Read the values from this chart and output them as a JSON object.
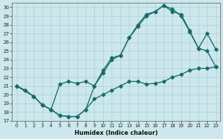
{
  "xlabel": "Humidex (Indice chaleur)",
  "xlim": [
    -0.5,
    23.5
  ],
  "ylim": [
    17,
    30.5
  ],
  "xticks": [
    0,
    1,
    2,
    3,
    4,
    5,
    6,
    7,
    8,
    9,
    10,
    11,
    12,
    13,
    14,
    15,
    16,
    17,
    18,
    19,
    20,
    21,
    22,
    23
  ],
  "yticks": [
    17,
    18,
    19,
    20,
    21,
    22,
    23,
    24,
    25,
    26,
    27,
    28,
    29,
    30
  ],
  "bg_color": "#cce8ec",
  "line_color": "#1a6b6b",
  "grid_color": "#aacdd4",
  "line1_x": [
    0,
    1,
    2,
    3,
    4,
    5,
    6,
    7,
    8,
    9,
    10,
    11,
    12,
    13,
    14,
    15,
    16,
    17,
    18,
    19,
    20,
    21,
    22,
    23
  ],
  "line1_y": [
    21.0,
    20.5,
    19.8,
    18.8,
    18.3,
    17.6,
    17.5,
    17.5,
    18.3,
    21.0,
    22.5,
    24.0,
    24.5,
    26.5,
    27.8,
    29.0,
    29.5,
    30.2,
    29.8,
    29.0,
    27.2,
    25.3,
    27.0,
    25.2
  ],
  "line2_x": [
    0,
    2,
    3,
    4,
    5,
    6,
    7,
    8,
    9,
    10,
    11,
    12,
    13,
    14,
    15,
    16,
    17,
    18,
    19,
    20,
    21,
    22,
    23
  ],
  "line2_y": [
    21.0,
    19.8,
    18.8,
    18.3,
    21.2,
    21.5,
    21.3,
    21.5,
    21.0,
    22.8,
    24.2,
    24.5,
    26.5,
    28.0,
    29.2,
    29.5,
    30.2,
    29.5,
    29.2,
    27.3,
    25.3,
    25.0,
    23.2
  ],
  "line3_x": [
    0,
    1,
    2,
    3,
    4,
    5,
    6,
    7,
    8,
    9,
    10,
    11,
    12,
    13,
    14,
    15,
    16,
    17,
    18,
    19,
    20,
    21,
    22,
    23
  ],
  "line3_y": [
    21.0,
    20.5,
    19.8,
    18.8,
    18.3,
    17.6,
    17.5,
    17.5,
    18.3,
    19.5,
    20.0,
    20.5,
    21.0,
    21.5,
    21.5,
    21.2,
    21.3,
    21.5,
    22.0,
    22.3,
    22.8,
    23.0,
    23.0,
    23.2
  ],
  "marker": "D",
  "markersize": 2.5,
  "linewidth": 1.0
}
